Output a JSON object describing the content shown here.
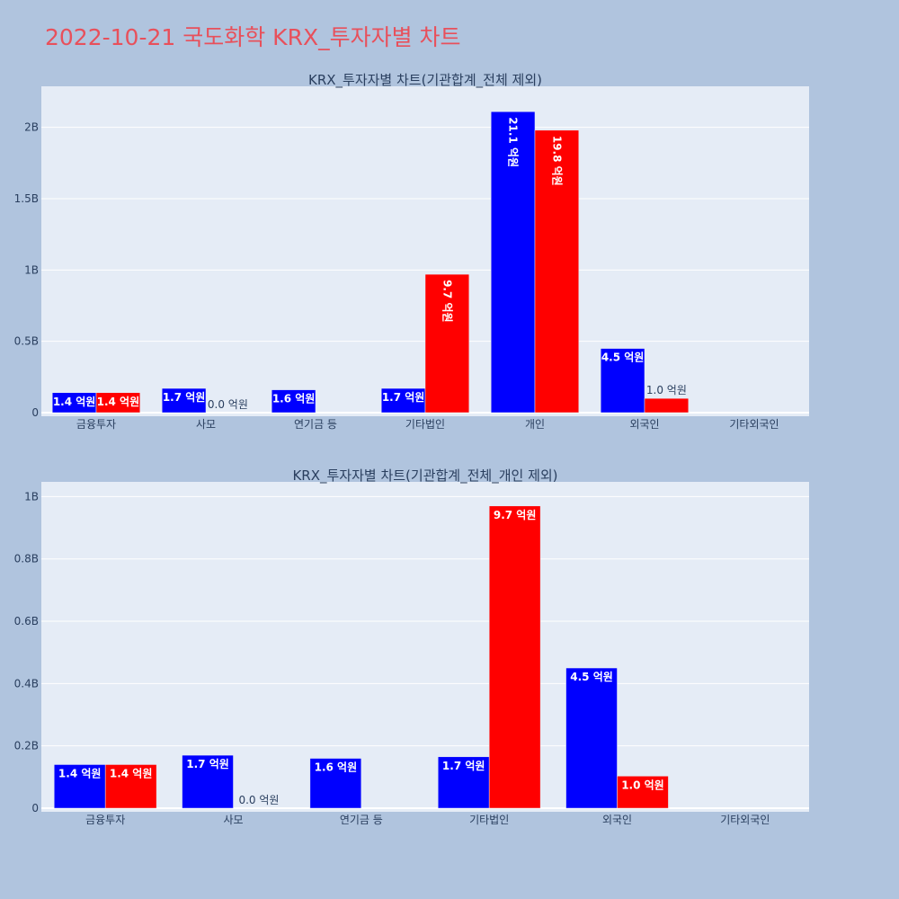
{
  "page": {
    "title": "2022-10-21 국도화학 KRX_투자자별 차트",
    "background": "#b0c4de",
    "plot_background": "#e5ecf6",
    "title_color": "#e8505b"
  },
  "colors": {
    "series_a": "#0000ff",
    "series_b": "#ff0000"
  },
  "chart_data": [
    {
      "type": "bar",
      "title": "KRX_투자자별 차트(기관합계_전체 제외)",
      "categories": [
        "금융투자",
        "사모",
        "연기금 등",
        "기타법인",
        "개인",
        "외국인",
        "기타외국인"
      ],
      "series": [
        {
          "values": [
            0.14,
            0.17,
            0.16,
            0.17,
            2.11,
            0.45,
            0
          ]
        },
        {
          "values": [
            0.14,
            0.0,
            0,
            0.97,
            1.98,
            0.1,
            0
          ]
        }
      ],
      "bar_labels": [
        [
          "1.4 억원",
          "1.7 억원",
          "1.6 억원",
          "1.7 억원",
          "21.1 억원",
          "4.5 억원",
          ""
        ],
        [
          "1.4 억원",
          "0.0 억원",
          "",
          "9.7 억원",
          "19.8 억원",
          "1.0 억원",
          ""
        ]
      ],
      "yticks": [
        0,
        0.5,
        1,
        1.5,
        2
      ],
      "ytick_labels": [
        "0",
        "0.5B",
        "1B",
        "1.5B",
        "2B"
      ],
      "ylim": [
        0,
        2.25
      ],
      "grid": true
    },
    {
      "type": "bar",
      "title": "KRX_투자자별 차트(기관합계_전체_개인 제외)",
      "categories": [
        "금융투자",
        "사모",
        "연기금 등",
        "기타법인",
        "외국인",
        "기타외국인"
      ],
      "series": [
        {
          "values": [
            0.14,
            0.17,
            0.16,
            0.165,
            0.45,
            0
          ]
        },
        {
          "values": [
            0.14,
            0.0,
            0,
            0.97,
            0.103,
            0
          ]
        }
      ],
      "bar_labels": [
        [
          "1.4 억원",
          "1.7 억원",
          "1.6 억원",
          "1.7 억원",
          "4.5 억원",
          ""
        ],
        [
          "1.4 억원",
          "0.0 억원",
          "",
          "9.7 억원",
          "1.0 억원",
          ""
        ]
      ],
      "yticks": [
        0,
        0.2,
        0.4,
        0.6,
        0.8,
        1
      ],
      "ytick_labels": [
        "0",
        "0.2B",
        "0.4B",
        "0.6B",
        "0.8B",
        "1B"
      ],
      "ylim": [
        0,
        1.03
      ],
      "grid": true
    }
  ]
}
